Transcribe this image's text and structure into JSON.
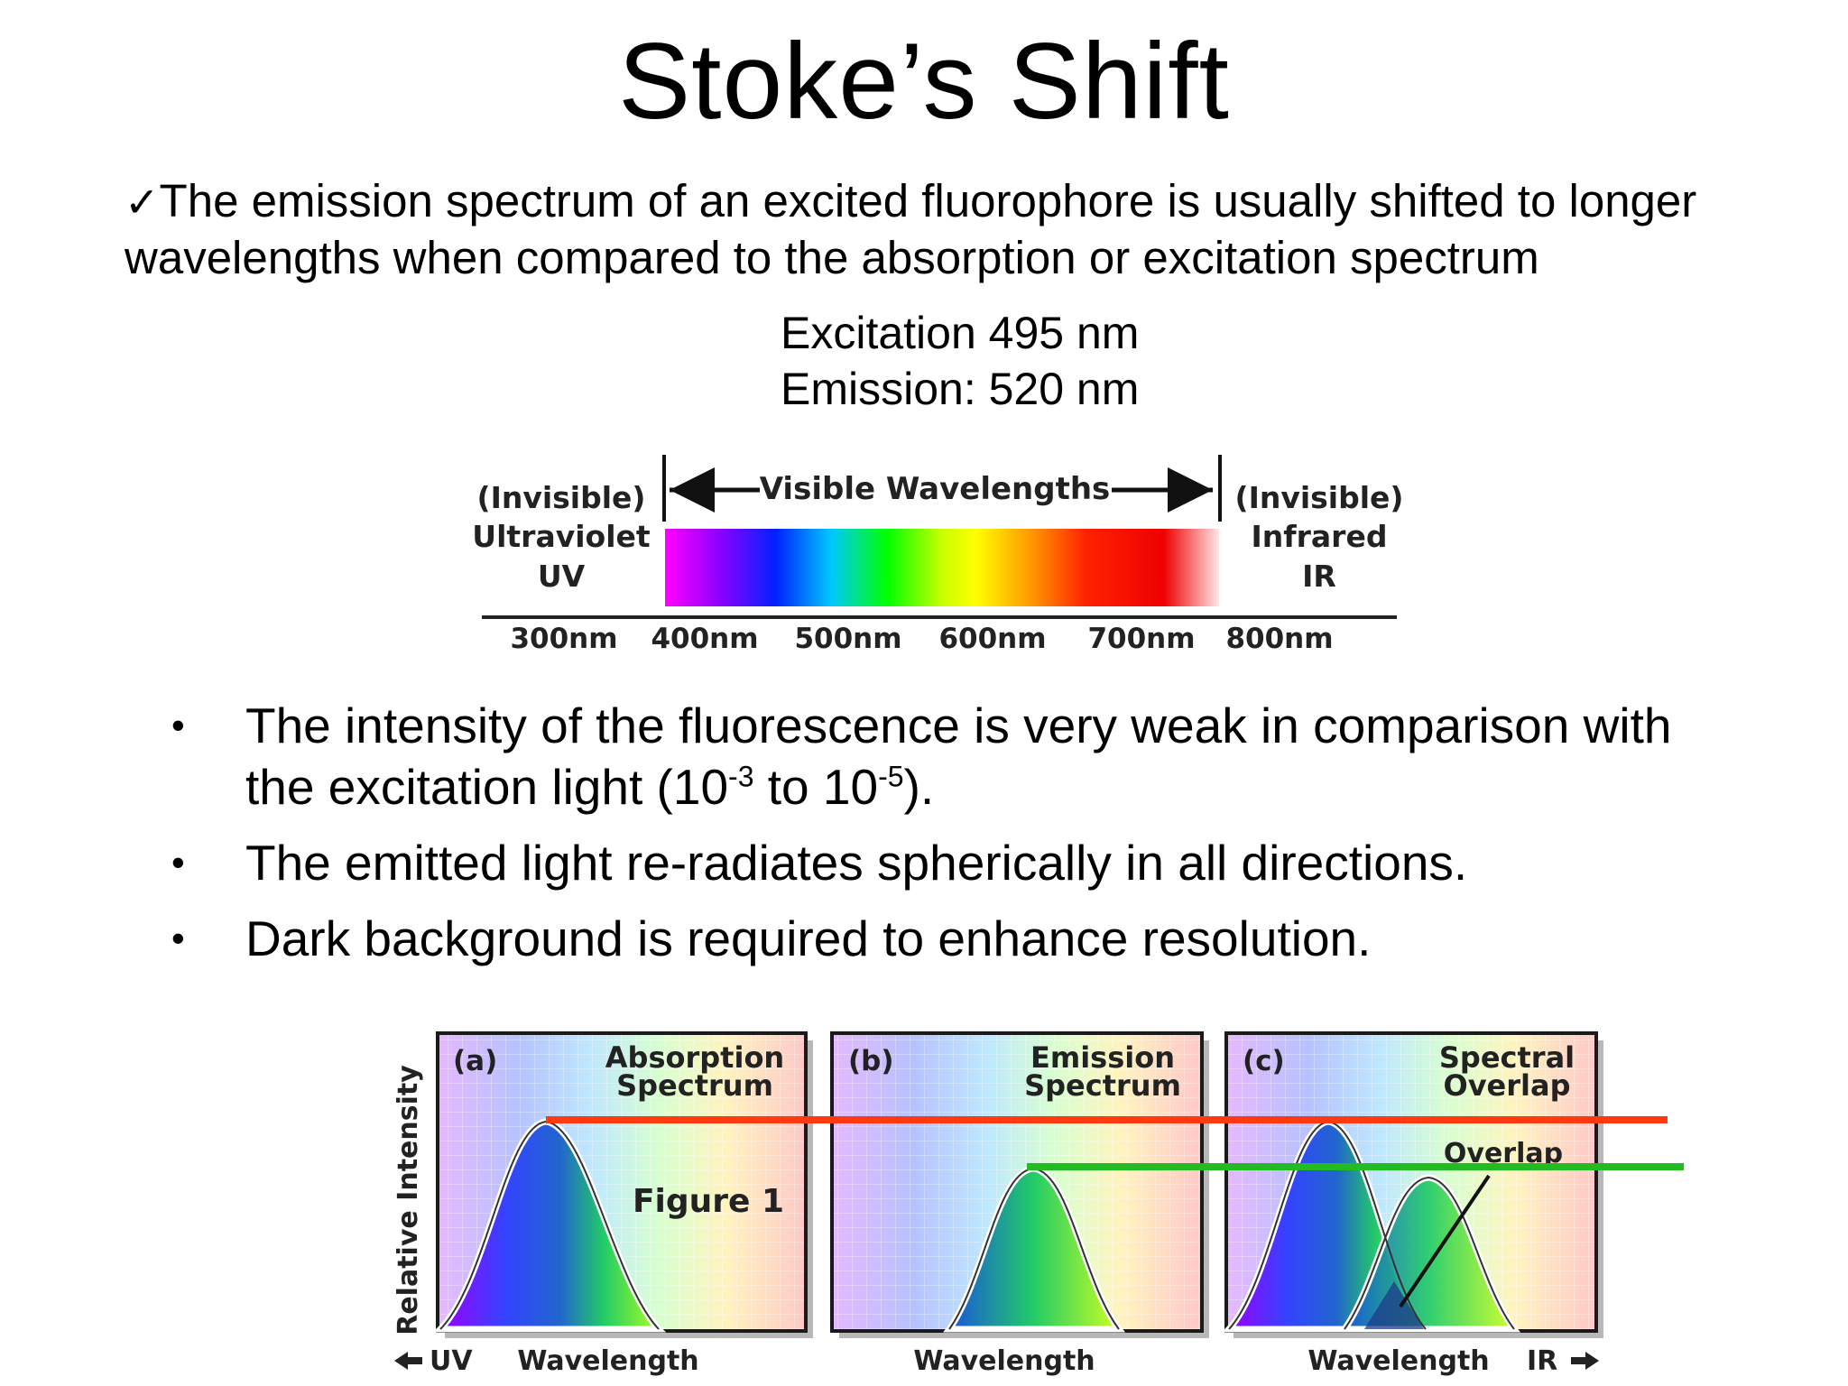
{
  "title": "Stoke’s Shift",
  "intro": {
    "check_icon": "✓",
    "text": "The emission spectrum of an excited fluorophore is usually shifted to longer wavelengths when compared to the absorption or excitation spectrum"
  },
  "excitation": "Excitation 495 nm",
  "emission": "Emission: 520 nm",
  "spectrum_figure": {
    "visible_label": "Visible Wavelengths",
    "uv_lines": [
      "(Invisible)",
      "Ultraviolet",
      "UV"
    ],
    "ir_lines": [
      "(Invisible)",
      "Infrared",
      "IR"
    ],
    "ticks": [
      "300nm",
      "400nm",
      "500nm",
      "600nm",
      "700nm",
      "800nm"
    ]
  },
  "bullets": [
    {
      "pre": "The intensity of the fluorescence is very weak in comparison with the excitation light (10",
      "sup1": "-3",
      "mid": " to 10",
      "sup2": "-5",
      "post": ")."
    },
    {
      "pre": "The emitted light re-radiates spherically in all directions."
    },
    {
      "pre": "Dark background is required to enhance resolution."
    }
  ],
  "figure1": {
    "y_axis": "Relative Intensity",
    "panel_a": {
      "letter": "(a)",
      "title_l1": "Absorption",
      "title_l2": "Spectrum",
      "caption": "Figure 1"
    },
    "panel_b": {
      "letter": "(b)",
      "title_l1": "Emission",
      "title_l2": "Spectrum"
    },
    "panel_c": {
      "letter": "(c)",
      "title_l1": "Spectral",
      "title_l2": "Overlap",
      "overlap": "Overlap"
    },
    "uv_label": "UV",
    "ir_label": "IR",
    "wavelength_label": "Wavelength",
    "colors": {
      "absorption_line": "#ff3a10",
      "emission_line": "#22bb22"
    }
  }
}
